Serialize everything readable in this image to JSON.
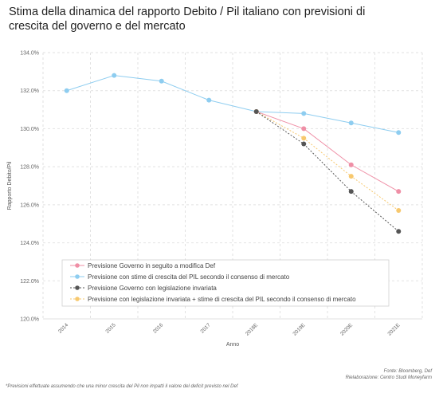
{
  "chart_data": {
    "type": "line",
    "title_lines": [
      "Stima della dinamica del rapporto Debito / Pil italiano con previsioni di",
      "crescita del governo e del mercato"
    ],
    "xlabel": "Anno",
    "ylabel": "Rapporto Debito/Pil",
    "categories": [
      "2014",
      "2015",
      "2016",
      "2017",
      "2018E",
      "2019E",
      "2020E",
      "2021E"
    ],
    "ylim": [
      120,
      134
    ],
    "yticks": [
      120,
      122,
      124,
      126,
      128,
      130,
      132,
      134
    ],
    "ytick_labels": [
      "120.0%",
      "122.0%",
      "124.0%",
      "126.0%",
      "128.0%",
      "130.0%",
      "132.0%",
      "134.0%"
    ],
    "grid": true,
    "legend_position": "bottom-left",
    "series": [
      {
        "name": "Previsione Governo in seguito a modifica Def",
        "color": "#ef8fa6",
        "dash": "solid",
        "values": [
          null,
          null,
          null,
          null,
          130.9,
          130.0,
          128.1,
          126.7
        ]
      },
      {
        "name": "Previsione con stime di crescita del PIL secondo il consenso di mercato",
        "color": "#8ecdf0",
        "dash": "solid",
        "values": [
          132.0,
          132.8,
          132.5,
          131.5,
          130.9,
          130.8,
          130.3,
          129.8
        ]
      },
      {
        "name": "Previsione Governo con legislazione invariata",
        "color": "#555555",
        "dash": "dotted",
        "values": [
          null,
          null,
          null,
          null,
          130.9,
          129.2,
          126.7,
          124.6
        ]
      },
      {
        "name": "Previsione con legislazione invariata + stime di crescita del PIL secondo il consenso di mercato",
        "color": "#f7c86e",
        "dash": "dotted",
        "values": [
          null,
          null,
          null,
          null,
          130.9,
          129.5,
          127.5,
          125.7
        ]
      }
    ]
  },
  "source_lines": [
    "Fonte: Bloomberg, Def",
    "Rielaborazione: Centro Studi Moneyfarm"
  ],
  "footnote": "*Previsioni effettuate assumendo che una minor crescita del Pil non impatti il valore del deficit previsto nel Def"
}
